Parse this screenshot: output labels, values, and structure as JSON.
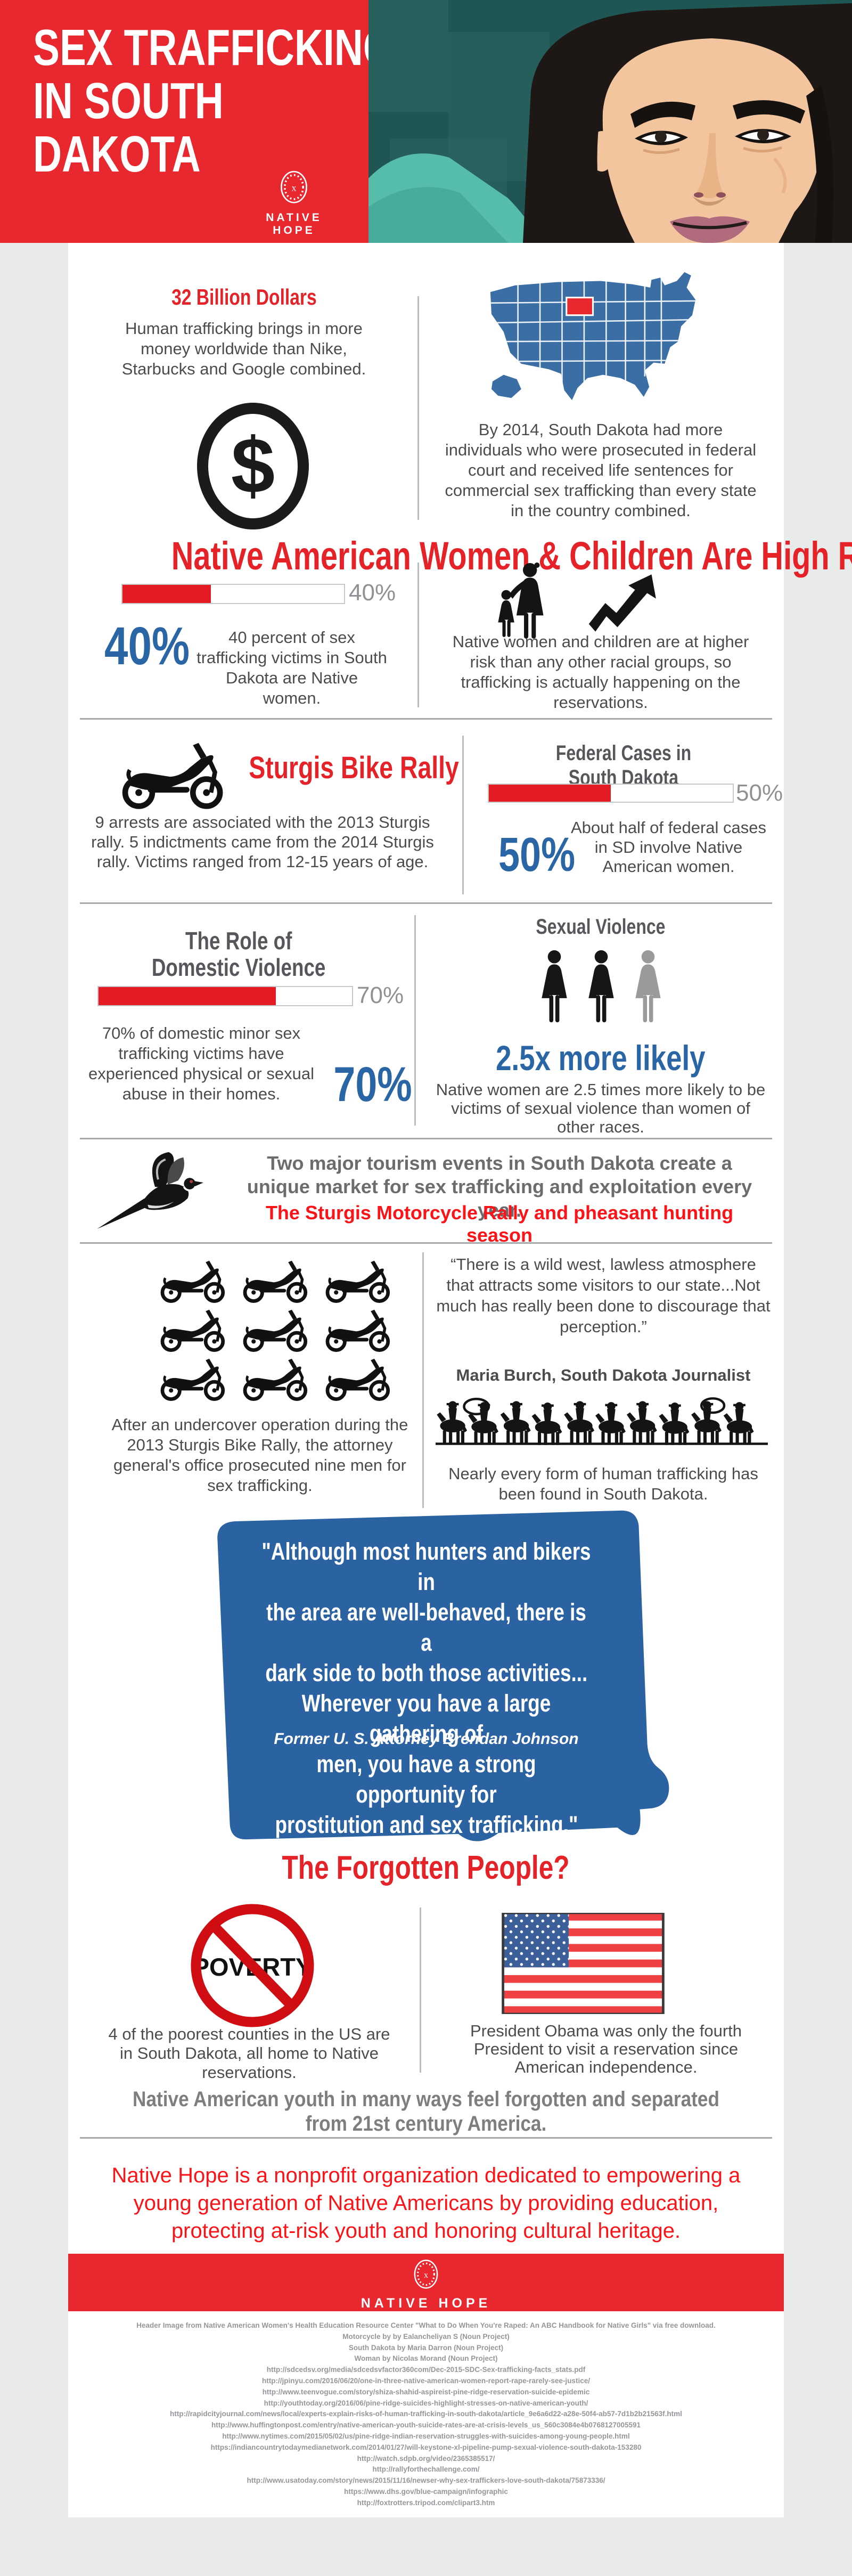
{
  "colors": {
    "header_red": "#e8272e",
    "accent_red": "#e62229",
    "bright_red": "#fb1318",
    "bar_red": "#e41b23",
    "stat_blue": "#2a66a6",
    "map_blue": "#3a6ea5",
    "sd_shape_blue": "#2b63a2",
    "teal_bg": "#1f5553",
    "jacket_teal": "#57bdab",
    "title_gray": "#56575a",
    "body_gray": "#4b4c4e"
  },
  "header": {
    "title_lines": [
      "SEX TRAFFICKING",
      "IN SOUTH",
      "DAKOTA"
    ],
    "brand": "NATIVE HOPE"
  },
  "section_billion": {
    "title": "32 Billion Dollars",
    "body": "Human trafficking brings in more money worldwide than Nike, Starbucks and Google combined.",
    "map_note": "By 2014, South Dakota had more individuals who were prosecuted in federal court and received life sentences for commercial sex trafficking than every state in the country combined."
  },
  "section_high_risk": {
    "title": "Native American Women & Children Are High Risk",
    "bar": {
      "value": 40,
      "label": "40%"
    },
    "big_percent": "40%",
    "left_body": "40 percent of sex trafficking victims in South Dakota are Native women.",
    "right_body": "Native women and children are at higher risk than any other racial groups, so trafficking is actually happening on the reservations."
  },
  "section_sturgis": {
    "title": "Sturgis Bike Rally",
    "body": "9 arrests are associated with the 2013 Sturgis rally. 5 indictments came from the 2014 Sturgis rally. Victims ranged from 12-15 years of age.",
    "federal": {
      "title_lines": [
        "Federal Cases in",
        "South Dakota"
      ],
      "bar": {
        "value": 50,
        "label": "50%"
      },
      "big_percent": "50%",
      "body": "About half of federal cases in SD involve Native American women."
    }
  },
  "section_violence": {
    "domestic": {
      "title_lines": [
        "The Role of",
        "Domestic Violence"
      ],
      "bar": {
        "value": 70,
        "label": "70%"
      },
      "big_percent": "70%",
      "body": "70% of domestic minor sex trafficking victims have experienced physical or sexual abuse in their homes."
    },
    "sexual": {
      "title": "Sexual Violence",
      "big_stat": "2.5x more likely",
      "body": "Native women are 2.5 times more likely to be victims of sexual violence than women of other races."
    }
  },
  "banner": {
    "line1": "Two major tourism events in South Dakota create a unique market for sex trafficking and exploitation every year.",
    "line2": "The Sturgis Motorcycle Rally and pheasant hunting season"
  },
  "section_undercover": {
    "body": "After an undercover operation during the 2013 Sturgis Bike Rally, the attorney general's office prosecuted nine men for sex trafficking.",
    "quote": "“There is a wild west, lawless atmosphere that attracts some visitors to our state...Not much has really been done to discourage that perception.”",
    "attribution": "Maria Burch, South Dakota Journalist",
    "note": "Nearly every form of human trafficking has been found in South Dakota."
  },
  "sd_quote": {
    "lines": [
      "\"Although most hunters and bikers in",
      "the area are well-behaved, there is a",
      "dark side to both those activities...",
      "Wherever you have a large gathering of",
      "men, you have a strong opportunity for",
      "prostitution and sex trafficking.\""
    ],
    "attribution": "Former U. S. Attorney Brendan Johnson"
  },
  "section_forgotten": {
    "title": "The Forgotten People?",
    "poverty_label": "POVERTY",
    "left_body": "4 of the poorest counties in the US are in South Dakota, all home to Native reservations.",
    "right_body": "President Obama was only the fourth President to visit a reservation since American independence.",
    "statement": "Native American youth in many ways feel forgotten and separated from 21st century America."
  },
  "footer": {
    "note": "Native Hope is a nonprofit organization dedicated to empowering a young generation of Native Americans by providing education, protecting at-risk youth and honoring cultural heritage.",
    "brand": "NATIVE HOPE",
    "credits": [
      "Header Image from Native American Women's Health Education Resource Center \"What to Do When You're Raped: An ABC Handbook for Native Girls\" via free download.",
      "Motorcycle by by Ealancheliyan S (Noun Project)",
      "South Dakota by Maria Darron (Noun Project)",
      "Woman by Nicolas Morand (Noun Project)",
      "http://sdcedsv.org/media/sdcedsvfactor360com/Dec-2015-SDC-Sex-trafficking-facts_stats.pdf",
      "http://jpinyu.com/2016/06/20/one-in-three-native-american-women-report-rape-rarely-see-justice/",
      "http://www.teenvogue.com/story/shiza-shahid-aspireist-pine-ridge-reservation-suicide-epidemic",
      "http://youthtoday.org/2016/06/pine-ridge-suicides-highlight-stresses-on-native-american-youth/",
      "http://rapidcityjournal.com/news/local/experts-explain-risks-of-human-trafficking-in-south-dakota/article_9e6a6d22-a28e-50f4-ab57-7d1b2b21563f.html",
      "http://www.huffingtonpost.com/entry/native-american-youth-suicide-rates-are-at-crisis-levels_us_560c3084e4b0768127005591",
      "http://www.nytimes.com/2015/05/02/us/pine-ridge-indian-reservation-struggles-with-suicides-among-young-people.html",
      "https://indiancountrytodaymedianetwork.com/2014/01/27/will-keystone-xl-pipeline-pump-sexual-violence-south-dakota-153280",
      "http://watch.sdpb.org/video/2365385517/",
      "http://rallyforthechallenge.com/",
      "http://www.usatoday.com/story/news/2015/11/16/newser-why-sex-traffickers-love-south-dakota/75873336/",
      "https://www.dhs.gov/blue-campaign/infographic",
      "http://foxtrotters.tripod.com/clipart3.htm"
    ]
  },
  "chart_data": [
    {
      "type": "bar",
      "title": "Sex trafficking victims in South Dakota who are Native women",
      "categories": [
        "Native women"
      ],
      "values": [
        40
      ],
      "unit": "%",
      "xlim": [
        0,
        100
      ]
    },
    {
      "type": "bar",
      "title": "Federal cases in SD involving Native American women",
      "categories": [
        "Federal cases"
      ],
      "values": [
        50
      ],
      "unit": "%",
      "xlim": [
        0,
        100
      ]
    },
    {
      "type": "bar",
      "title": "Domestic minor sex trafficking victims who experienced physical or sexual abuse at home",
      "categories": [
        "Victims abused at home"
      ],
      "values": [
        70
      ],
      "unit": "%",
      "xlim": [
        0,
        100
      ]
    }
  ]
}
